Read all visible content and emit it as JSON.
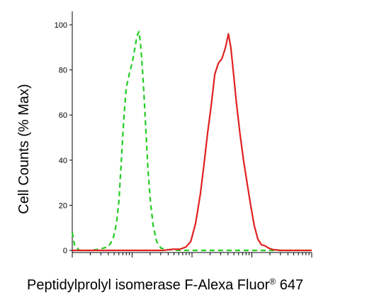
{
  "chart_data": {
    "type": "line",
    "xlabel_main": "Peptidylprolyl isomerase F-Alexa Fluor",
    "xlabel_mark": "®",
    "xlabel_tail": " 647",
    "ylabel": "Cell Counts (% Max)",
    "ylim": [
      0,
      100
    ],
    "yticks": [
      "0",
      "20",
      "40",
      "60",
      "80",
      "100"
    ],
    "x_scale": "log",
    "xlim": [
      0,
      1
    ],
    "grid": false,
    "series": [
      {
        "color": "#22cc22",
        "dash": true,
        "points": [
          [
            0.0,
            8
          ],
          [
            0.01,
            2
          ],
          [
            0.03,
            0
          ],
          [
            0.08,
            0
          ],
          [
            0.11,
            0.5
          ],
          [
            0.15,
            1.5
          ],
          [
            0.17,
            5
          ],
          [
            0.185,
            12
          ],
          [
            0.195,
            22
          ],
          [
            0.205,
            40
          ],
          [
            0.215,
            58
          ],
          [
            0.225,
            72
          ],
          [
            0.24,
            79
          ],
          [
            0.25,
            83
          ],
          [
            0.262,
            90
          ],
          [
            0.27,
            95
          ],
          [
            0.278,
            97
          ],
          [
            0.285,
            92
          ],
          [
            0.292,
            82
          ],
          [
            0.3,
            68
          ],
          [
            0.308,
            52
          ],
          [
            0.316,
            36
          ],
          [
            0.326,
            22
          ],
          [
            0.338,
            11
          ],
          [
            0.352,
            4
          ],
          [
            0.37,
            1
          ],
          [
            0.4,
            0.3
          ],
          [
            0.45,
            0
          ],
          [
            1.0,
            0
          ]
        ]
      },
      {
        "color": "#e02020",
        "dash": false,
        "points": [
          [
            0.0,
            0
          ],
          [
            0.38,
            0
          ],
          [
            0.42,
            0.5
          ],
          [
            0.45,
            0.5
          ],
          [
            0.475,
            1.5
          ],
          [
            0.495,
            4
          ],
          [
            0.515,
            12
          ],
          [
            0.535,
            25
          ],
          [
            0.55,
            38
          ],
          [
            0.565,
            52
          ],
          [
            0.58,
            64
          ],
          [
            0.595,
            78
          ],
          [
            0.61,
            83
          ],
          [
            0.625,
            85
          ],
          [
            0.64,
            90
          ],
          [
            0.652,
            96
          ],
          [
            0.662,
            90
          ],
          [
            0.672,
            80
          ],
          [
            0.685,
            66
          ],
          [
            0.7,
            52
          ],
          [
            0.715,
            40
          ],
          [
            0.73,
            30
          ],
          [
            0.745,
            20
          ],
          [
            0.76,
            11
          ],
          [
            0.775,
            5
          ],
          [
            0.79,
            2.5
          ],
          [
            0.805,
            2
          ],
          [
            0.82,
            1
          ],
          [
            0.84,
            0.3
          ],
          [
            0.87,
            0
          ],
          [
            1.0,
            0
          ]
        ]
      }
    ]
  }
}
